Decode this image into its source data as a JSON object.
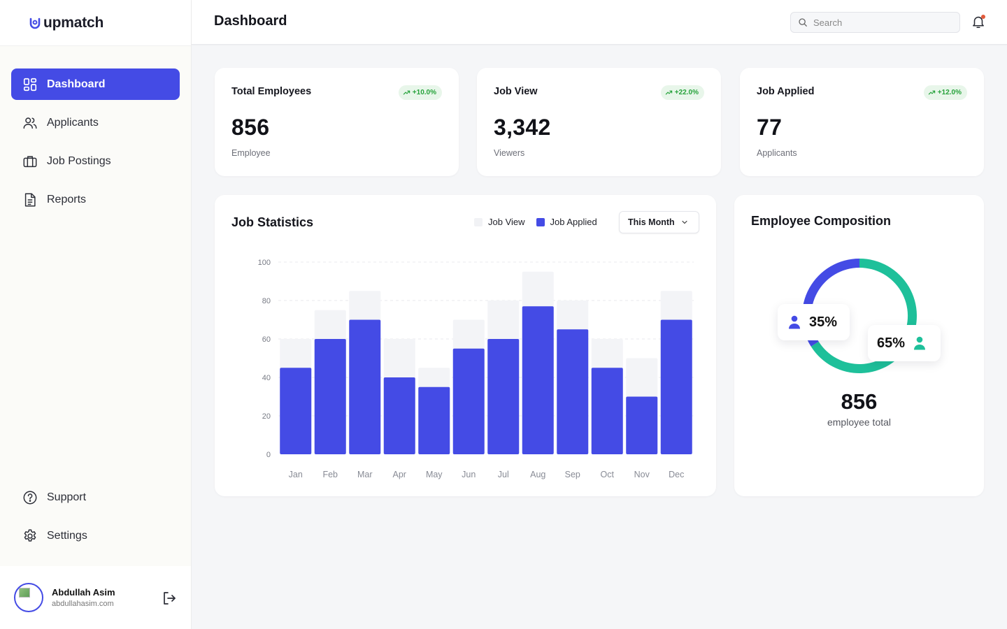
{
  "app": {
    "name": "upmatch"
  },
  "sidebar": {
    "items": [
      {
        "label": "Dashboard",
        "icon": "dashboard-icon",
        "active": true
      },
      {
        "label": "Applicants",
        "icon": "users-icon"
      },
      {
        "label": "Job Postings",
        "icon": "briefcase-icon"
      },
      {
        "label": "Reports",
        "icon": "document-icon"
      }
    ],
    "bottom_items": [
      {
        "label": "Support",
        "icon": "help-icon"
      },
      {
        "label": "Settings",
        "icon": "gear-icon"
      }
    ],
    "user": {
      "name": "Abdullah Asim",
      "email": "abdullahasim.com"
    }
  },
  "header": {
    "title": "Dashboard",
    "search_placeholder": "Search"
  },
  "stats": [
    {
      "title": "Total Employees",
      "badge": "+10.0%",
      "value": "856",
      "sub": "Employee"
    },
    {
      "title": "Job View",
      "badge": "+22.0%",
      "value": "3,342",
      "sub": "Viewers"
    },
    {
      "title": "Job Applied",
      "badge": "+12.0%",
      "value": "77",
      "sub": "Applicants"
    }
  ],
  "job_statistics": {
    "title": "Job Statistics",
    "legend": {
      "job_view": "Job View",
      "job_applied": "Job Applied"
    },
    "period": "This Month"
  },
  "composition": {
    "title": "Employee Composition",
    "segment_a": "35%",
    "segment_b": "65%",
    "total": "856",
    "total_label": "employee total"
  },
  "colors": {
    "accent": "#444be5",
    "teal": "#1ec09a",
    "view_bar": "#f3f4f7",
    "badge_green": "#25a23a"
  },
  "chart_data": {
    "type": "bar",
    "categories": [
      "Jan",
      "Feb",
      "Mar",
      "Apr",
      "May",
      "Jun",
      "Jul",
      "Aug",
      "Sep",
      "Oct",
      "Nov",
      "Dec"
    ],
    "series": [
      {
        "name": "Job View",
        "values": [
          60,
          75,
          85,
          60,
          45,
          70,
          80,
          95,
          80,
          60,
          50,
          85
        ]
      },
      {
        "name": "Job Applied",
        "values": [
          45,
          60,
          70,
          40,
          35,
          55,
          60,
          77,
          65,
          45,
          30,
          70
        ]
      }
    ],
    "yticks": [
      0,
      20,
      40,
      60,
      80,
      100
    ],
    "ylim": [
      0,
      100
    ],
    "grid": true,
    "legend_position": "top-right"
  }
}
